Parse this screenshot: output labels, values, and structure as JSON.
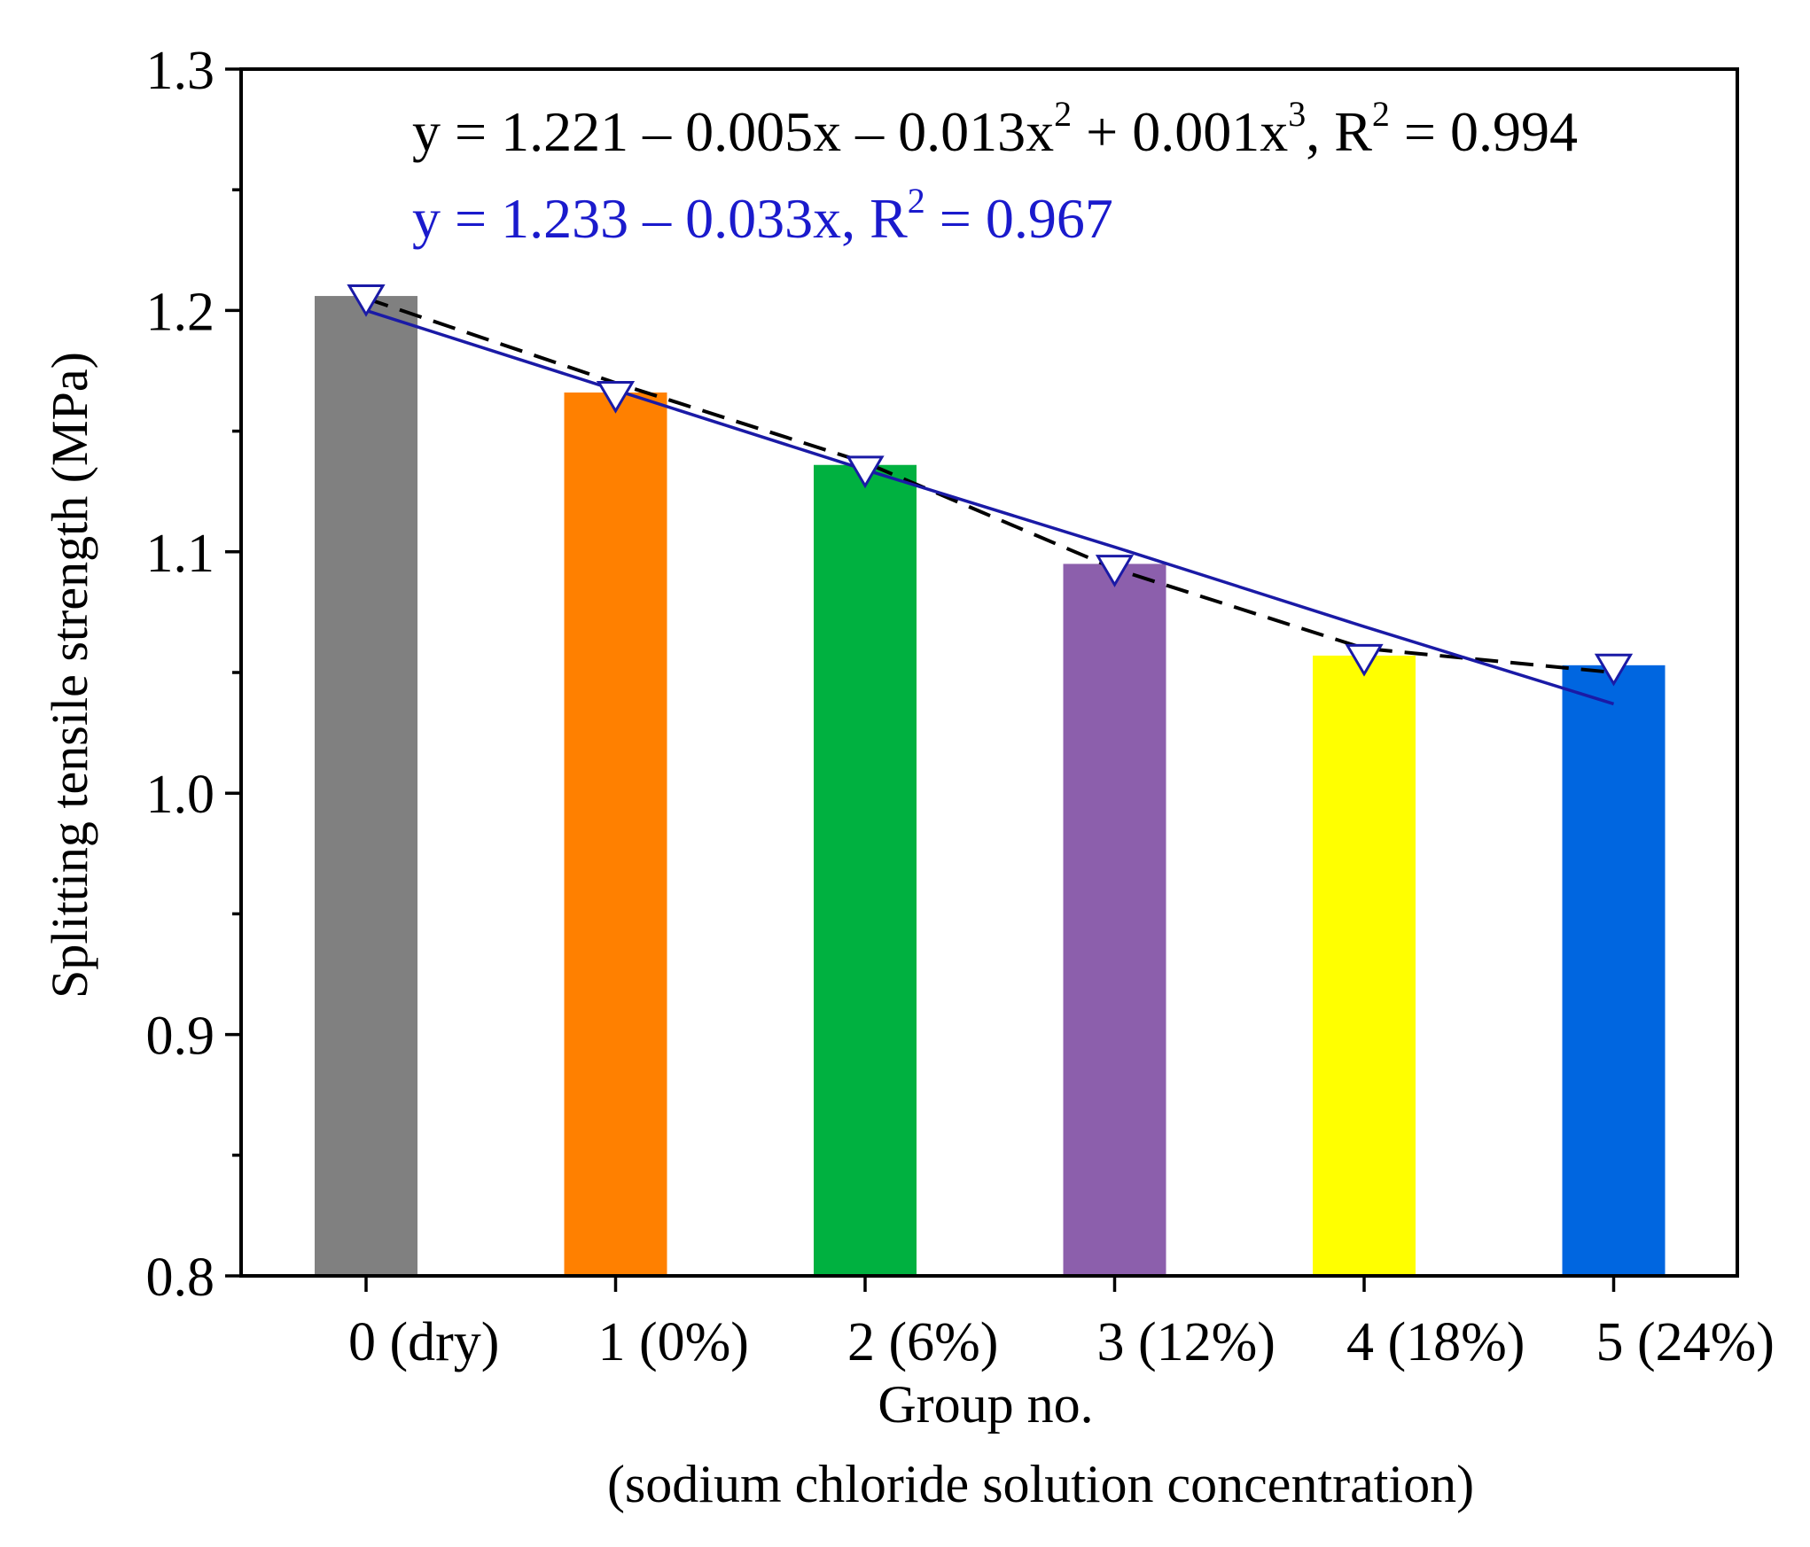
{
  "chart_data": {
    "type": "bar",
    "categories": [
      "0 (dry)",
      "1 (0%)",
      "2 (6%)",
      "3 (12%)",
      "4 (18%)",
      "5 (24%)"
    ],
    "x": [
      0,
      1,
      2,
      3,
      4,
      5
    ],
    "values": [
      1.206,
      1.166,
      1.136,
      1.095,
      1.057,
      1.053
    ],
    "bar_colors": [
      "#808080",
      "#ff8000",
      "#00b140",
      "#8c5fac",
      "#ffff00",
      "#0066e0"
    ],
    "markers": [
      1.205,
      1.165,
      1.134,
      1.093,
      1.056,
      1.052
    ],
    "xlabel": "Group no.",
    "xlabel2": "(sodium chloride solution concentration)",
    "ylabel": "Splitting tensile strength (MPa)",
    "ylim": [
      0.8,
      1.3
    ],
    "yticks": [
      "0.8",
      "0.9",
      "1.0",
      "1.1",
      "1.2",
      "1.3"
    ],
    "ytick_values": [
      0.8,
      0.9,
      1.0,
      1.1,
      1.2,
      1.3
    ],
    "fits": [
      {
        "name": "cubic fit",
        "style": "dashed",
        "color": "#000000",
        "coefficients": [
          1.221,
          -0.005,
          -0.013,
          0.001
        ],
        "y_at_x": [
          1.205,
          1.17,
          1.137,
          1.093,
          1.06,
          1.05
        ],
        "equation": {
          "prefix": "y = 1.221 – 0.005x – 0.013x",
          "sup1": "2",
          "mid": " + 0.001x",
          "sup2": "3",
          "tail": ", R",
          "sup3": "2",
          "end": " = 0.994"
        }
      },
      {
        "name": "linear fit",
        "style": "solid",
        "color": "#1a1aa6",
        "coefficients": [
          1.233,
          -0.033
        ],
        "y_at_x": [
          1.2,
          1.167,
          1.134,
          1.102,
          1.069,
          1.037
        ],
        "equation": {
          "prefix": "y = 1.233 – 0.033x, R",
          "sup1": "2",
          "end": " = 0.967"
        }
      }
    ]
  }
}
